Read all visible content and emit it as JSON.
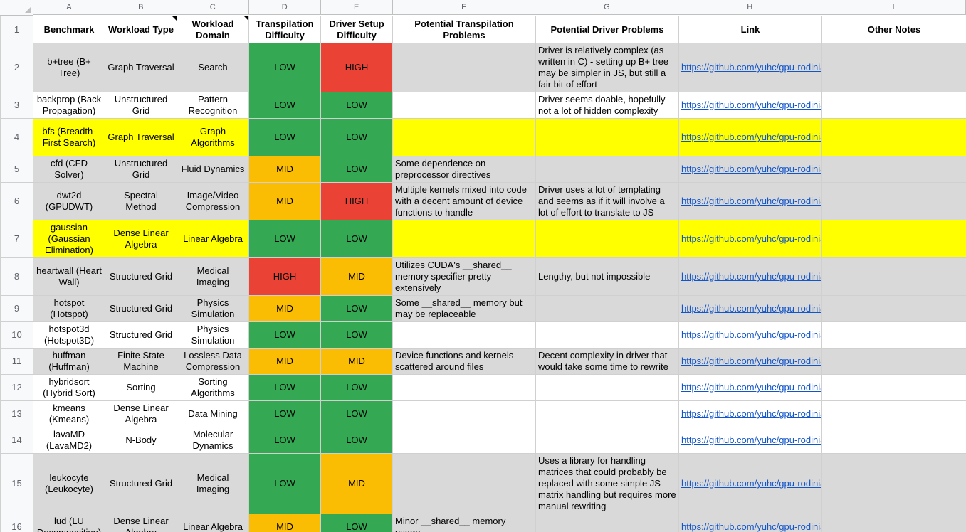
{
  "columns": [
    "A",
    "B",
    "C",
    "D",
    "E",
    "F",
    "G",
    "H",
    "I"
  ],
  "headers": {
    "benchmark": "Benchmark",
    "workload_type": "Workload Type",
    "workload_domain": "Workload Domain",
    "transpilation_difficulty": "Transpilation Difficulty",
    "driver_setup_difficulty": "Driver Setup Difficulty",
    "potential_transpilation_problems": "Potential Transpilation Problems",
    "potential_driver_problems": "Potential Driver Problems",
    "link": "Link",
    "other_notes": "Other Notes"
  },
  "row_numbers": [
    "1",
    "2",
    "3",
    "4",
    "5",
    "6",
    "7",
    "8",
    "9",
    "10",
    "11",
    "12",
    "13",
    "14",
    "15",
    "16"
  ],
  "rows": [
    {
      "benchmark": "b+tree (B+ Tree)",
      "type": "Graph Traversal",
      "domain": "Search",
      "trans": "LOW",
      "driver": "HIGH",
      "trans_problems": "",
      "driver_problems": "Driver is relatively complex (as written in C) - setting up B+ tree may be simpler in JS, but still a fair bit of effort",
      "link": "https://github.com/yuhc/gpu-rodinia",
      "notes": ""
    },
    {
      "benchmark": "backprop (Back Propagation)",
      "type": "Unstructured Grid",
      "domain": "Pattern Recognition",
      "trans": "LOW",
      "driver": "LOW",
      "trans_problems": "",
      "driver_problems": "Driver seems doable, hopefully not a lot of hidden complexity",
      "link": "https://github.com/yuhc/gpu-rodinia",
      "notes": ""
    },
    {
      "benchmark": "bfs (Breadth-First Search)",
      "type": "Graph Traversal",
      "domain": "Graph Algorithms",
      "trans": "LOW",
      "driver": "LOW",
      "trans_problems": "",
      "driver_problems": "",
      "link": "https://github.com/yuhc/gpu-rodinia",
      "notes": ""
    },
    {
      "benchmark": "cfd (CFD Solver)",
      "type": "Unstructured Grid",
      "domain": "Fluid Dynamics",
      "trans": "MID",
      "driver": "LOW",
      "trans_problems": "Some dependence on preprocessor directives",
      "driver_problems": "",
      "link": "https://github.com/yuhc/gpu-rodinia",
      "notes": ""
    },
    {
      "benchmark": "dwt2d (GPUDWT)",
      "type": "Spectral Method",
      "domain": "Image/Video Compression",
      "trans": "MID",
      "driver": "HIGH",
      "trans_problems": "Multiple kernels mixed into code with a decent amount of device functions to handle",
      "driver_problems": "Driver uses a lot of templating and seems as if it will involve a lot of effort to translate to JS",
      "link": "https://github.com/yuhc/gpu-rodinia",
      "notes": ""
    },
    {
      "benchmark": "gaussian (Gaussian Elimination)",
      "type": "Dense Linear Algebra",
      "domain": "Linear Algebra",
      "trans": "LOW",
      "driver": "LOW",
      "trans_problems": "",
      "driver_problems": "",
      "link": "https://github.com/yuhc/gpu-rodinia",
      "notes": ""
    },
    {
      "benchmark": "heartwall (Heart Wall)",
      "type": "Structured Grid",
      "domain": "Medical Imaging",
      "trans": "HIGH",
      "driver": "MID",
      "trans_problems": "Utilizes CUDA's __shared__ memory specifier pretty extensively",
      "driver_problems": "Lengthy, but not impossible",
      "link": "https://github.com/yuhc/gpu-rodinia",
      "notes": ""
    },
    {
      "benchmark": "hotspot (Hotspot)",
      "type": "Structured Grid",
      "domain": "Physics Simulation",
      "trans": "MID",
      "driver": "LOW",
      "trans_problems": "Some __shared__ memory but may be replaceable",
      "driver_problems": "",
      "link": "https://github.com/yuhc/gpu-rodinia",
      "notes": ""
    },
    {
      "benchmark": "hotspot3d (Hotspot3D)",
      "type": "Structured Grid",
      "domain": "Physics Simulation",
      "trans": "LOW",
      "driver": "LOW",
      "trans_problems": "",
      "driver_problems": "",
      "link": "https://github.com/yuhc/gpu-rodinia",
      "notes": ""
    },
    {
      "benchmark": "huffman (Huffman)",
      "type": "Finite State Machine",
      "domain": "Lossless Data Compression",
      "trans": "MID",
      "driver": "MID",
      "trans_problems": "Device functions and kernels scattered around files",
      "driver_problems": "Decent complexity in driver that would take some time to rewrite",
      "link": "https://github.com/yuhc/gpu-rodinia",
      "notes": ""
    },
    {
      "benchmark": "hybridsort (Hybrid Sort)",
      "type": "Sorting",
      "domain": "Sorting Algorithms",
      "trans": "LOW",
      "driver": "LOW",
      "trans_problems": "",
      "driver_problems": "",
      "link": "https://github.com/yuhc/gpu-rodinia",
      "notes": ""
    },
    {
      "benchmark": "kmeans (Kmeans)",
      "type": "Dense Linear Algebra",
      "domain": "Data Mining",
      "trans": "LOW",
      "driver": "LOW",
      "trans_problems": "",
      "driver_problems": "",
      "link": "https://github.com/yuhc/gpu-rodinia",
      "notes": ""
    },
    {
      "benchmark": "lavaMD (LavaMD2)",
      "type": "N-Body",
      "domain": "Molecular Dynamics",
      "trans": "LOW",
      "driver": "LOW",
      "trans_problems": "",
      "driver_problems": "",
      "link": "https://github.com/yuhc/gpu-rodinia",
      "notes": ""
    },
    {
      "benchmark": "leukocyte (Leukocyte)",
      "type": "Structured Grid",
      "domain": "Medical Imaging",
      "trans": "LOW",
      "driver": "MID",
      "trans_problems": "",
      "driver_problems": "Uses a library for handling matrices that could probably be replaced with some simple JS matrix handling but requires more manual rewriting",
      "link": "https://github.com/yuhc/gpu-rodinia",
      "notes": ""
    },
    {
      "benchmark": "lud (LU Decomposition)",
      "type": "Dense Linear Algebra",
      "domain": "Linear Algebra",
      "trans": "MID",
      "driver": "LOW",
      "trans_problems": "Minor __shared__ memory usage",
      "driver_problems": "",
      "link": "https://github.com/yuhc/gpu-rodinia",
      "notes": ""
    }
  ],
  "colors": {
    "low": "#34a853",
    "mid": "#fbbc04",
    "high": "#ea4335",
    "gray_row": "#d9d9d9",
    "yellow_row": "#ffff00",
    "link": "#1155cc"
  }
}
